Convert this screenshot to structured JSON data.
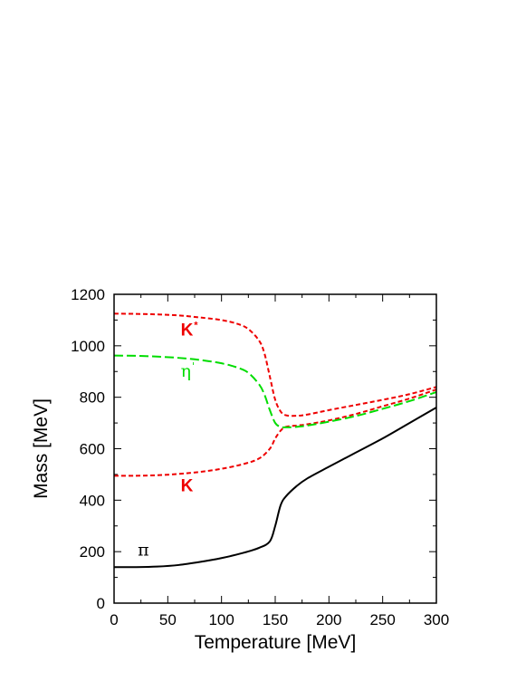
{
  "chart_data": {
    "type": "line",
    "xlabel": "Temperature [MeV]",
    "ylabel": "Mass [MeV]",
    "xlim": [
      0,
      300
    ],
    "ylim": [
      0,
      1200
    ],
    "xticks": [
      0,
      50,
      100,
      150,
      200,
      250,
      300
    ],
    "yticks": [
      0,
      200,
      400,
      600,
      800,
      1000,
      1200
    ],
    "grid": false,
    "series": [
      {
        "name": "π",
        "color": "#000000",
        "dash": "solid",
        "x": [
          0,
          20,
          40,
          60,
          80,
          100,
          120,
          135,
          145,
          150,
          155,
          160,
          170,
          180,
          200,
          225,
          250,
          275,
          300
        ],
        "y": [
          140,
          140,
          142,
          148,
          160,
          175,
          195,
          215,
          240,
          300,
          380,
          415,
          455,
          485,
          530,
          585,
          640,
          700,
          760
        ]
      },
      {
        "name": "K",
        "color": "#ee0000",
        "dash": "short",
        "x": [
          0,
          20,
          40,
          60,
          80,
          100,
          120,
          135,
          145,
          150,
          155,
          160,
          170,
          180,
          200,
          225,
          250,
          275,
          300
        ],
        "y": [
          495,
          495,
          497,
          502,
          510,
          522,
          540,
          562,
          600,
          640,
          670,
          685,
          690,
          695,
          710,
          735,
          765,
          795,
          830
        ]
      },
      {
        "name": "K*",
        "color": "#ee0000",
        "dash": "short",
        "x": [
          0,
          20,
          40,
          60,
          80,
          100,
          115,
          125,
          135,
          140,
          145,
          150,
          155,
          160,
          170,
          180,
          200,
          225,
          250,
          275,
          300
        ],
        "y": [
          1125,
          1124,
          1122,
          1118,
          1110,
          1100,
          1085,
          1065,
          1020,
          970,
          880,
          790,
          745,
          730,
          728,
          733,
          750,
          770,
          790,
          812,
          840
        ]
      },
      {
        "name": "η'",
        "color": "#00dd00",
        "dash": "long",
        "x": [
          0,
          20,
          40,
          60,
          80,
          100,
          115,
          125,
          135,
          140,
          145,
          150,
          155,
          160,
          170,
          180,
          200,
          225,
          250,
          275,
          300
        ],
        "y": [
          962,
          961,
          958,
          953,
          945,
          932,
          915,
          895,
          850,
          810,
          750,
          700,
          685,
          683,
          685,
          690,
          705,
          727,
          755,
          785,
          820
        ]
      }
    ],
    "labels": [
      {
        "text": "K",
        "sup": "*",
        "color": "#ee0000",
        "x": 62,
        "y": 1040,
        "style": "bold"
      },
      {
        "text": "η",
        "sup": "'",
        "color": "#00dd00",
        "x": 62,
        "y": 880,
        "style": "greek"
      },
      {
        "text": "K",
        "sup": "",
        "color": "#ee0000",
        "x": 62,
        "y": 435,
        "style": "bold"
      },
      {
        "text": "π",
        "sup": "",
        "color": "#000000",
        "x": 22,
        "y": 185,
        "style": "greek"
      }
    ]
  }
}
